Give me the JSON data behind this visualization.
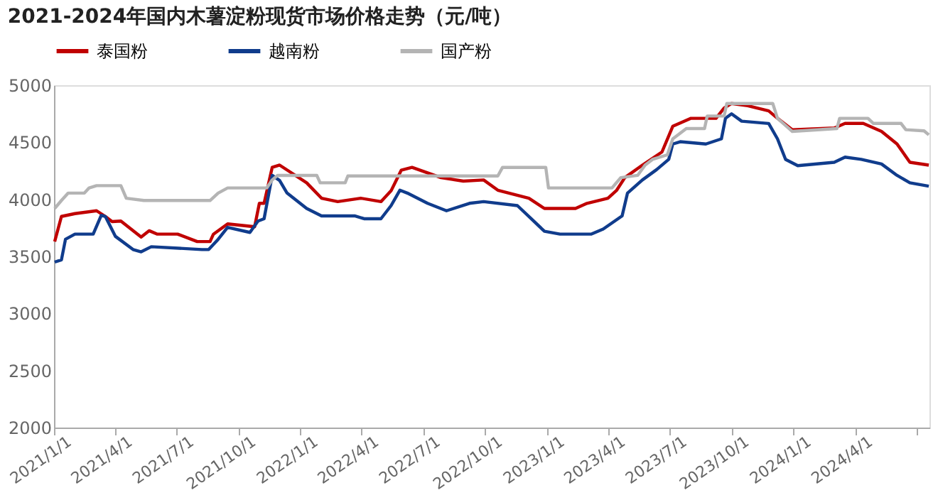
{
  "chart_data": {
    "type": "line",
    "title": "2021-2024年国内木薯淀粉现货市场价格走势（元/吨）",
    "xlim": [
      "2021-01-01",
      "2024-07-20"
    ],
    "xticks": [
      {
        "value": "2021-01-01",
        "label": "2021/1/1"
      },
      {
        "value": "2021-04-01",
        "label": "2021/4/1"
      },
      {
        "value": "2021-07-01",
        "label": "2021/7/1"
      },
      {
        "value": "2021-10-01",
        "label": "2021/10/1"
      },
      {
        "value": "2022-01-01",
        "label": "2022/1/1"
      },
      {
        "value": "2022-04-01",
        "label": "2022/4/1"
      },
      {
        "value": "2022-07-01",
        "label": "2022/7/1"
      },
      {
        "value": "2022-10-01",
        "label": "2022/10/1"
      },
      {
        "value": "2023-01-01",
        "label": "2023/1/1"
      },
      {
        "value": "2023-04-01",
        "label": "2023/4/1"
      },
      {
        "value": "2023-07-01",
        "label": "2023/7/1"
      },
      {
        "value": "2023-10-01",
        "label": "2023/10/1"
      },
      {
        "value": "2024-01-01",
        "label": "2024/1/1"
      },
      {
        "value": "2024-04-01",
        "label": "2024/4/1"
      },
      {
        "value": "2024-07-01",
        "label": null
      }
    ],
    "ylim": [
      2000,
      5000
    ],
    "yticks": [
      2000,
      2500,
      3000,
      3500,
      4000,
      4500,
      5000
    ],
    "grid": false,
    "legend": "top",
    "marker": "none",
    "line_style": "solid",
    "series": [
      {
        "name": "泰国粉",
        "color": "#c00000",
        "x": [
          "2021-01-02",
          "2021-01-12",
          "2021-02-01",
          "2021-03-05",
          "2021-03-18",
          "2021-03-28",
          "2021-04-10",
          "2021-05-10",
          "2021-05-22",
          "2021-06-03",
          "2021-07-03",
          "2021-08-01",
          "2021-08-20",
          "2021-08-25",
          "2021-09-15",
          "2021-10-25",
          "2021-11-01",
          "2021-11-08",
          "2021-11-20",
          "2021-12-01",
          "2022-01-10",
          "2022-02-01",
          "2022-02-25",
          "2022-03-31",
          "2022-04-30",
          "2022-05-15",
          "2022-05-30",
          "2022-06-15",
          "2022-07-28",
          "2022-08-30",
          "2022-09-29",
          "2022-10-20",
          "2022-12-05",
          "2022-12-28",
          "2023-02-12",
          "2023-03-01",
          "2023-04-01",
          "2023-04-14",
          "2023-04-26",
          "2023-05-22",
          "2023-06-20",
          "2023-07-06",
          "2023-08-02",
          "2023-09-08",
          "2023-09-20",
          "2023-10-01",
          "2023-10-25",
          "2023-11-25",
          "2023-12-08",
          "2023-12-30",
          "2024-03-01",
          "2024-03-17",
          "2024-04-13",
          "2024-05-10",
          "2024-06-02",
          "2024-06-21",
          "2024-07-19"
        ],
        "values": [
          3630,
          3850,
          3875,
          3900,
          3850,
          3805,
          3810,
          3670,
          3725,
          3695,
          3695,
          3630,
          3630,
          3695,
          3785,
          3760,
          3965,
          3965,
          4280,
          4300,
          4145,
          4010,
          3980,
          4010,
          3980,
          4075,
          4255,
          4280,
          4190,
          4160,
          4170,
          4080,
          4010,
          3920,
          3920,
          3965,
          4010,
          4080,
          4190,
          4300,
          4415,
          4640,
          4710,
          4710,
          4800,
          4840,
          4820,
          4775,
          4710,
          4610,
          4625,
          4665,
          4665,
          4595,
          4485,
          4325,
          4300
        ]
      },
      {
        "name": "越南粉",
        "color": "#103c8c",
        "x": [
          "2021-01-02",
          "2021-01-12",
          "2021-01-18",
          "2021-02-01",
          "2021-02-28",
          "2021-03-12",
          "2021-03-18",
          "2021-04-02",
          "2021-04-28",
          "2021-05-10",
          "2021-05-25",
          "2021-08-08",
          "2021-08-18",
          "2021-09-01",
          "2021-09-15",
          "2021-10-18",
          "2021-10-30",
          "2021-11-08",
          "2021-11-20",
          "2021-12-01",
          "2021-12-12",
          "2022-01-10",
          "2022-02-01",
          "2022-03-22",
          "2022-04-05",
          "2022-04-30",
          "2022-05-15",
          "2022-05-28",
          "2022-06-08",
          "2022-07-08",
          "2022-08-05",
          "2022-09-08",
          "2022-09-29",
          "2022-11-18",
          "2022-12-12",
          "2022-12-28",
          "2023-01-20",
          "2023-03-07",
          "2023-03-25",
          "2023-04-22",
          "2023-04-30",
          "2023-05-22",
          "2023-06-12",
          "2023-06-30",
          "2023-07-06",
          "2023-07-17",
          "2023-08-24",
          "2023-09-16",
          "2023-09-22",
          "2023-10-01",
          "2023-10-16",
          "2023-11-25",
          "2023-12-08",
          "2023-12-20",
          "2024-01-07",
          "2024-03-01",
          "2024-03-17",
          "2024-04-10",
          "2024-05-10",
          "2024-06-02",
          "2024-06-21",
          "2024-07-19"
        ],
        "values": [
          3450,
          3470,
          3650,
          3695,
          3695,
          3860,
          3850,
          3675,
          3560,
          3540,
          3585,
          3560,
          3560,
          3650,
          3755,
          3710,
          3810,
          3830,
          4210,
          4165,
          4055,
          3920,
          3855,
          3855,
          3830,
          3830,
          3945,
          4080,
          4055,
          3965,
          3900,
          3965,
          3980,
          3945,
          3810,
          3720,
          3695,
          3695,
          3740,
          3855,
          4055,
          4170,
          4260,
          4350,
          4485,
          4505,
          4485,
          4530,
          4710,
          4750,
          4685,
          4665,
          4530,
          4350,
          4295,
          4325,
          4370,
          4350,
          4310,
          4210,
          4145,
          4115
        ]
      },
      {
        "name": "国产粉",
        "color": "#b4b4b4",
        "x": [
          "2021-01-02",
          "2021-01-12",
          "2021-01-22",
          "2021-02-15",
          "2021-02-22",
          "2021-03-05",
          "2021-04-10",
          "2021-04-18",
          "2021-05-14",
          "2021-08-20",
          "2021-09-01",
          "2021-09-15",
          "2021-11-12",
          "2021-11-20",
          "2021-11-28",
          "2022-01-25",
          "2022-01-30",
          "2022-03-08",
          "2022-03-12",
          "2022-10-20",
          "2022-10-27",
          "2022-12-30",
          "2023-01-03",
          "2023-04-07",
          "2023-04-20",
          "2023-05-15",
          "2023-05-26",
          "2023-06-06",
          "2023-06-28",
          "2023-07-06",
          "2023-07-26",
          "2023-08-22",
          "2023-08-26",
          "2023-09-20",
          "2023-09-24",
          "2023-12-01",
          "2023-12-08",
          "2023-12-30",
          "2024-03-05",
          "2024-03-09",
          "2024-04-20",
          "2024-04-28",
          "2024-06-08",
          "2024-06-15",
          "2024-07-12",
          "2024-07-19"
        ],
        "values": [
          3920,
          3990,
          4055,
          4055,
          4100,
          4120,
          4120,
          4010,
          3990,
          3990,
          4055,
          4100,
          4100,
          4170,
          4210,
          4210,
          4145,
          4145,
          4205,
          4205,
          4280,
          4280,
          4100,
          4100,
          4190,
          4210,
          4300,
          4350,
          4390,
          4530,
          4620,
          4620,
          4730,
          4730,
          4840,
          4840,
          4710,
          4595,
          4620,
          4710,
          4710,
          4665,
          4665,
          4610,
          4600,
          4565
        ]
      }
    ]
  }
}
